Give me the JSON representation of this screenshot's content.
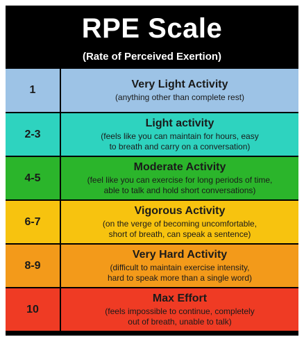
{
  "header": {
    "title": "RPE Scale",
    "subtitle": "(Rate of Perceived Exertion)"
  },
  "rows": [
    {
      "level": "1",
      "title": "Very Light Activity",
      "desc": "(anything other than complete rest)",
      "color": "#9dc3e6"
    },
    {
      "level": "2-3",
      "title": "Light activity",
      "desc": "(feels like you can maintain for hours, easy\nto breath and carry on a conversation)",
      "color": "#2ed3bf"
    },
    {
      "level": "4-5",
      "title": "Moderate Activity",
      "desc": "(feel like you can exercise for long periods of time,\nable to talk and hold short conversations)",
      "color": "#2bb52b"
    },
    {
      "level": "6-7",
      "title": "Vigorous Activity",
      "desc": "(on the verge of becoming uncomfortable,\nshort of breath, can speak a sentence)",
      "color": "#f7c30f"
    },
    {
      "level": "8-9",
      "title": "Very Hard Activity",
      "desc": "(difficult to maintain exercise intensity,\nhard to speak more than a single word)",
      "color": "#f39a1a"
    },
    {
      "level": "10",
      "title": "Max Effort",
      "desc": "(feels impossible to continue, completely\nout of breath, unable to talk)",
      "color": "#ef3b24"
    }
  ]
}
